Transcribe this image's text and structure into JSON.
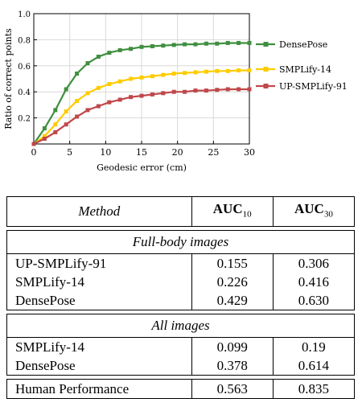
{
  "chart_data": {
    "type": "line",
    "xlabel": "Geodesic error (cm)",
    "ylabel": "Ratio of correct points",
    "xlim": [
      0,
      30
    ],
    "ylim": [
      0,
      1.0
    ],
    "xticks": [
      "0",
      "5",
      "10",
      "15",
      "20",
      "25",
      "30"
    ],
    "yticks": [
      "0.2",
      "0.4",
      "0.6",
      "0.8",
      "1.0"
    ],
    "legend_position": "right",
    "x": [
      0,
      1.5,
      3,
      4.5,
      6,
      7.5,
      9,
      10.5,
      12,
      13.5,
      15,
      16.5,
      18,
      19.5,
      21,
      22.5,
      24,
      25.5,
      27,
      28.5,
      30
    ],
    "series": [
      {
        "name": "DensePose",
        "color": "#3f8f3f",
        "marker": "square",
        "values": [
          0.0,
          0.12,
          0.26,
          0.42,
          0.54,
          0.62,
          0.67,
          0.7,
          0.72,
          0.73,
          0.745,
          0.75,
          0.755,
          0.76,
          0.765,
          0.765,
          0.77,
          0.77,
          0.775,
          0.775,
          0.775
        ]
      },
      {
        "name": "SMPLify-14",
        "color": "#ffcc00",
        "marker": "square",
        "values": [
          0.0,
          0.06,
          0.15,
          0.25,
          0.33,
          0.39,
          0.43,
          0.46,
          0.48,
          0.5,
          0.51,
          0.52,
          0.53,
          0.54,
          0.545,
          0.55,
          0.555,
          0.56,
          0.56,
          0.565,
          0.565
        ]
      },
      {
        "name": "UP-SMPLify-91",
        "color": "#c0474a",
        "marker": "square",
        "values": [
          0.0,
          0.04,
          0.09,
          0.15,
          0.21,
          0.26,
          0.29,
          0.32,
          0.34,
          0.36,
          0.37,
          0.38,
          0.39,
          0.4,
          0.4,
          0.41,
          0.41,
          0.415,
          0.42,
          0.42,
          0.42
        ]
      }
    ]
  },
  "table": {
    "header": {
      "method": "Method",
      "auc10_main": "AUC",
      "auc10_sub": "10",
      "auc30_main": "AUC",
      "auc30_sub": "30"
    },
    "sections": [
      {
        "title": "Full-body images",
        "rows": [
          {
            "method": "UP-SMPLify-91",
            "auc10": "0.155",
            "auc30": "0.306"
          },
          {
            "method": "SMPLify-14",
            "auc10": "0.226",
            "auc30": "0.416"
          },
          {
            "method": "DensePose",
            "auc10": "0.429",
            "auc30": "0.630"
          }
        ]
      },
      {
        "title": "All images",
        "rows": [
          {
            "method": "SMPLify-14",
            "auc10": "0.099",
            "auc30": "0.19"
          },
          {
            "method": "DensePose",
            "auc10": "0.378",
            "auc30": "0.614"
          }
        ]
      }
    ],
    "human": {
      "method": "Human Performance",
      "auc10": "0.563",
      "auc30": "0.835"
    }
  }
}
